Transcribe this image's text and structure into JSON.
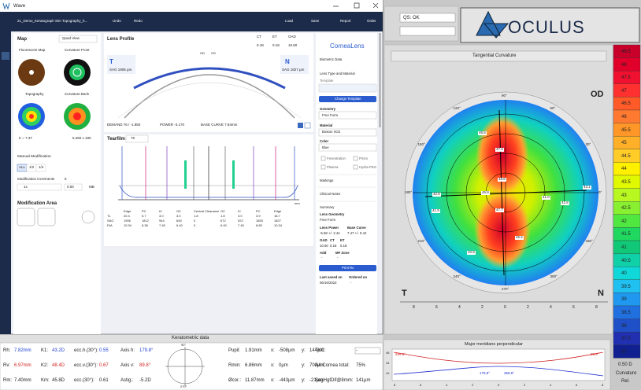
{
  "window": {
    "title": "Wave",
    "file": "21_Demo_Keratograph Sim Topography_h...",
    "toolbar": [
      "Undo",
      "Redo",
      "Load",
      "Save",
      "Report",
      "Order"
    ]
  },
  "map": {
    "title": "Map",
    "view": "Quad View",
    "thumbs": [
      "Fluorescein Map",
      "Curvature Front",
      "Topography",
      "Curvature Back"
    ],
    "k": "K = 7.37",
    "size": "5.260 x 180",
    "manual": "Manual Modification",
    "segments": [
      "ALL",
      "1/2",
      "1/4"
    ],
    "increments": "Modification increments",
    "inc_value": "5",
    "mult": "1x",
    "offset": "0.00",
    "mb": "MB",
    "area": "Modification Area"
  },
  "profile": {
    "title": "Lens Profile",
    "params": [
      {
        "label": "CT",
        "value": "0.18"
      },
      {
        "label": "ET",
        "value": "0.18"
      },
      {
        "label": "OAD",
        "value": "10.60"
      }
    ],
    "eyes": [
      "OD",
      "OS"
    ],
    "t": "T",
    "t_sag": "SAG 1906 µm",
    "n": "N",
    "n_sag": "SAG 1827 µm",
    "demand": "DEMAND 76 / -1.850",
    "power": "POWER -3.170",
    "base": "BASE CURVE 7.84mm"
  },
  "tearfilm": {
    "title": "Tearfilm",
    "value": "76",
    "unit": "mm",
    "headers": [
      "Edge",
      "PC",
      "IC",
      "OZ",
      "Central Clearance",
      "OZ",
      "IC",
      "PC",
      "Edge"
    ],
    "rows": [
      [
        "TL",
        "20.3",
        "5.7",
        "3.0",
        "3.0",
        "1.8",
        "1.8",
        "3.0",
        "3.9",
        "18.7"
      ],
      [
        "SAG",
        "1906",
        "1812",
        "944",
        "645",
        "0",
        "672",
        "922",
        "1853",
        "1827"
      ],
      [
        "DIA",
        "10.34",
        "8.38",
        "7.45",
        "6.40",
        "0",
        "6.40",
        "7.45",
        "8.65",
        "10.34"
      ]
    ]
  },
  "side": {
    "brand": "CorneaLens",
    "biometric": "Biometric Data",
    "lens_type": "Lens Type and Material",
    "template": "Template",
    "change": "Change Template",
    "geometry": "Geometry",
    "geometry_value": "Free Form",
    "material": "Material",
    "material_value": "Boston XO2",
    "color": "Color",
    "color_value": "Blue",
    "options": [
      "Fenestration",
      "Prism",
      "Plasma",
      "Hydra-PEG"
    ],
    "markings": "Markings",
    "notes": "Clinical Notes",
    "summary": "Summary",
    "lens_geometry": "Lens Geometry",
    "lens_geometry_value": "Free Form",
    "lens_power": "Lens Power",
    "lens_power_value": "-5.68 +/- 2.44",
    "base_curve": "Base Curve",
    "base_curve_value": "7.47 +/- 0.44",
    "specs": [
      {
        "label": "OAD",
        "value": "10.60"
      },
      {
        "label": "CT",
        "value": "0.18"
      },
      {
        "label": "ET",
        "value": "0.18"
      }
    ],
    "add": "Add",
    "add_value": "-",
    "mf": "MF Zone",
    "mf_value": "-",
    "print": "Print Rx",
    "saved": "Last saved on",
    "saved_value": "06/16/2022",
    "ordered": "Ordered on",
    "ordered_value": "-"
  },
  "oculus": {
    "qs": "QS: OK",
    "logo": "OCULUS",
    "map_title": "Tangential Curvature",
    "eye": "OD",
    "t": "T",
    "n": "N",
    "angles": [
      "0°",
      "30°",
      "60°",
      "90°",
      "120°",
      "150°",
      "180°",
      "210°",
      "240°",
      "270°",
      "300°",
      "330°"
    ],
    "contours": [
      "46.5",
      "47.3",
      "48.6",
      "42.6",
      "45.8",
      "41.0",
      "42.8",
      "41.9",
      "47.7",
      "46.2",
      "40.8",
      "43.1"
    ],
    "ruler": [
      "8",
      "6",
      "4",
      "2",
      "0",
      "2",
      "4",
      "6",
      "8"
    ],
    "scale": {
      "values": [
        48.5,
        48,
        47.5,
        47,
        46.5,
        46,
        45.5,
        45,
        44.5,
        44,
        43.5,
        43,
        42.5,
        42,
        41.5,
        41,
        40.5,
        40,
        39.5,
        39,
        38.5,
        38,
        37.5,
        37
      ],
      "colors": [
        "#c8002a",
        "#e0002a",
        "#f01030",
        "#ff3030",
        "#ff5a28",
        "#ff7a30",
        "#ff9628",
        "#ffb028",
        "#ffcc28",
        "#fff000",
        "#e0f800",
        "#b8f820",
        "#88f030",
        "#50e840",
        "#20d860",
        "#10c878",
        "#10d0a8",
        "#10d8d8",
        "#20c0f0",
        "#2098f0",
        "#2070e0",
        "#2050c8",
        "#2030b0",
        "#102090"
      ],
      "step": "0.50 D",
      "kind": "Curvature",
      "mode": "Rel."
    }
  },
  "kerato": {
    "title": "Keratometric data",
    "rows": [
      [
        [
          "Rh:",
          "7.82mm"
        ],
        [
          "K1:",
          "43.2D"
        ],
        [
          "ecc.h.(30°):",
          "0.55"
        ],
        [
          "Axis h:",
          "179.8°"
        ],
        [
          "Pupil:",
          "1.91mm"
        ],
        [
          "x:",
          "-508µm"
        ],
        [
          "y:",
          "144µm"
        ],
        [
          "TKC:",
          "-"
        ]
      ],
      [
        [
          "Rv:",
          "6.97mm"
        ],
        [
          "K2:",
          "48.4D"
        ],
        [
          "ecc.v.(30°):",
          "0.67"
        ],
        [
          "Axis v:",
          "89.8°"
        ],
        [
          "Rmin:",
          "6.86mm"
        ],
        [
          "x:",
          "0µm"
        ],
        [
          "y:",
          "700µm"
        ],
        [
          "AA Cornea total:",
          "75%"
        ]
      ],
      [
        [
          "Rm:",
          "7.40mm"
        ],
        [
          "Km:",
          "45.8D"
        ],
        [
          "ecc.(30°):",
          "0.61"
        ],
        [
          "Astig.:",
          "-5.2D"
        ],
        [
          "Øcor.:",
          "11.87mm"
        ],
        [
          "x:",
          "-443µm"
        ],
        [
          "y:",
          "-21µm"
        ],
        [
          "SagHgtDif@8mm:",
          "141µm"
        ]
      ]
    ],
    "dial": [
      "90°",
      "270°"
    ]
  },
  "meridians": {
    "title": "Major meridians perpendicular",
    "labels": [
      "269.8°",
      "89.8°",
      "179.8°",
      "359.8°"
    ],
    "yticks": [
      "46",
      "44",
      "42"
    ],
    "xticks": [
      "8",
      "6",
      "4",
      "2",
      "0",
      "2",
      "4",
      "6",
      "8"
    ]
  }
}
